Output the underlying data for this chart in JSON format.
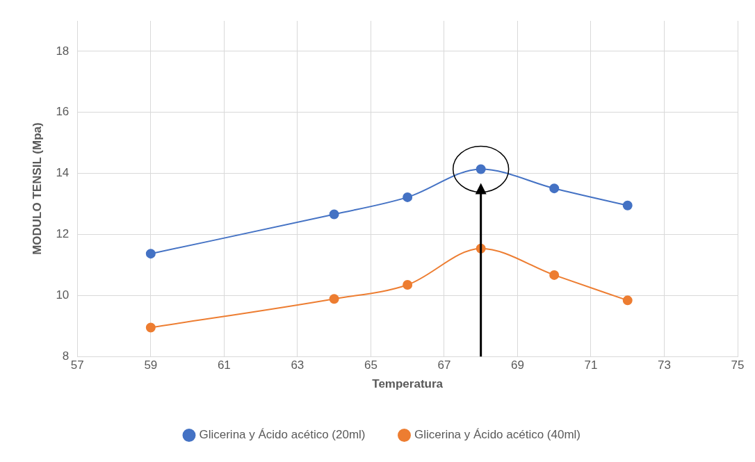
{
  "chart_data": {
    "type": "line",
    "xlabel": "Temperatura",
    "ylabel": "MODULO TENSIL (Mpa)",
    "x": [
      59,
      64,
      66,
      68,
      70,
      72
    ],
    "series": [
      {
        "name": "Glicerina y Ácido acético (20ml)",
        "color": "#4472c4",
        "values": [
          11.37,
          12.66,
          13.22,
          14.14,
          13.51,
          12.95
        ]
      },
      {
        "name": "Glicerina y Ácido acético (40ml)",
        "color": "#ed7d31",
        "values": [
          8.95,
          9.89,
          10.35,
          11.54,
          10.67,
          9.84
        ]
      }
    ],
    "xlim": [
      57,
      75
    ],
    "xticks": [
      57,
      59,
      61,
      63,
      65,
      67,
      69,
      71,
      73,
      75
    ],
    "ylim": [
      8,
      19
    ],
    "yticks": [
      8,
      10,
      12,
      14,
      16,
      18
    ],
    "grid": true,
    "legend": "bottom",
    "marker": "circle",
    "line_style": "solid"
  }
}
